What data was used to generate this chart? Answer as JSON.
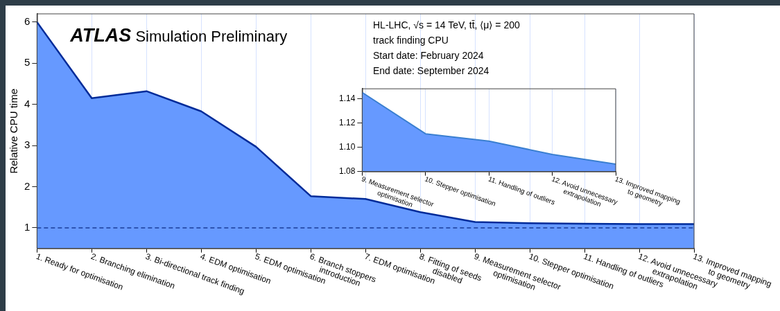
{
  "chart_data": [
    {
      "type": "area",
      "title": "ATLAS Simulation Preliminary",
      "ylabel": "Relative CPU time",
      "annotations": [
        "HL-LHC, √s = 14 TeV, tt̄, ⟨μ⟩ = 200",
        "track finding CPU",
        "Start date: February 2024",
        "End date: September 2024"
      ],
      "categories": [
        "1. Ready for optimisation",
        "2. Branching elimination",
        "3. Bi-directional track finding",
        "4. EDM optimisation",
        "5. EDM optimisation",
        "6. Branch stoppers\nintroduction",
        "7. EDM optimisation",
        "8. Fitting of seeds\ndisabled",
        "9. Measurement selector\noptimisation",
        "10. Stepper optimisation",
        "11. Handling of outliers",
        "12. Avoid unnecessary\nextrapolation",
        "13. Improved mapping\nto geometry"
      ],
      "series": [
        {
          "color": "#002b99",
          "values": [
            6.0,
            4.15,
            4.32,
            3.83,
            2.97,
            1.77,
            1.7,
            1.38,
            1.14,
            1.11,
            1.1,
            1.09,
            1.09
          ]
        }
      ],
      "ylim": [
        0.5,
        6.2
      ],
      "yticks": [
        1,
        2,
        3,
        4,
        5,
        6
      ],
      "grid": "x",
      "legend": false,
      "ref_lines": [
        {
          "axis": "y",
          "value": 1,
          "color": "#1a3d99",
          "line_style": "dashed"
        }
      ]
    },
    {
      "type": "area",
      "categories": [
        "9. Measurement selector\noptimisation",
        "10. Stepper optimisation",
        "11. Handling of outliers",
        "12. Avoid unnecessary\nextrapolation",
        "13. Improved mapping\nto geometry"
      ],
      "series": [
        {
          "color": "#3a7fd0",
          "values": [
            1.145,
            1.111,
            1.105,
            1.094,
            1.086
          ]
        }
      ],
      "ylim": [
        1.08,
        1.148
      ],
      "yticks": [
        {
          "value": 1.08,
          "label": "1.08"
        },
        {
          "value": 1.1,
          "label": "1.10"
        },
        {
          "value": 1.12,
          "label": "1.12"
        },
        {
          "value": 1.14,
          "label": "1.14"
        }
      ],
      "grid": "x",
      "legend": false
    }
  ]
}
